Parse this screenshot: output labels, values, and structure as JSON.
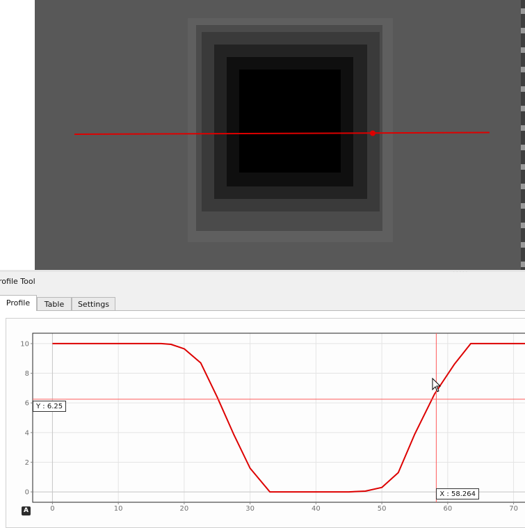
{
  "panel": {
    "title": "rofile Tool"
  },
  "tabs": [
    {
      "label": "Profile",
      "active": true
    },
    {
      "label": "Table",
      "active": false
    },
    {
      "label": "Settings",
      "active": false
    }
  ],
  "readouts": {
    "y": "Y : 6.25",
    "x": "X : 58.264"
  },
  "auto_scale_label": "A",
  "colors": {
    "profile_line": "#dd0000",
    "crosshair": "#ff5a5a",
    "image_background": "#585858"
  },
  "chart_data": {
    "type": "line",
    "title": "",
    "xlabel": "",
    "ylabel": "",
    "xlim": [
      -3,
      73
    ],
    "ylim": [
      -0.7,
      10.7
    ],
    "xticks": [
      0,
      10,
      20,
      30,
      40,
      50,
      60,
      70
    ],
    "yticks": [
      0,
      2,
      4,
      6,
      8,
      10
    ],
    "grid": true,
    "series": [
      {
        "x": [
          0,
          16.5,
          18,
          20,
          22.5,
          25,
          27.5,
          30,
          33,
          36,
          39,
          42,
          45,
          47.5,
          50,
          52.5,
          55,
          58,
          61,
          63.5,
          73
        ],
        "y": [
          10,
          10,
          9.95,
          9.65,
          8.7,
          6.4,
          3.9,
          1.6,
          0,
          0,
          0,
          0,
          0,
          0.05,
          0.3,
          1.3,
          3.9,
          6.6,
          8.6,
          10,
          10
        ]
      }
    ],
    "crosshair": {
      "x": 58.264,
      "y": 6.25
    }
  }
}
